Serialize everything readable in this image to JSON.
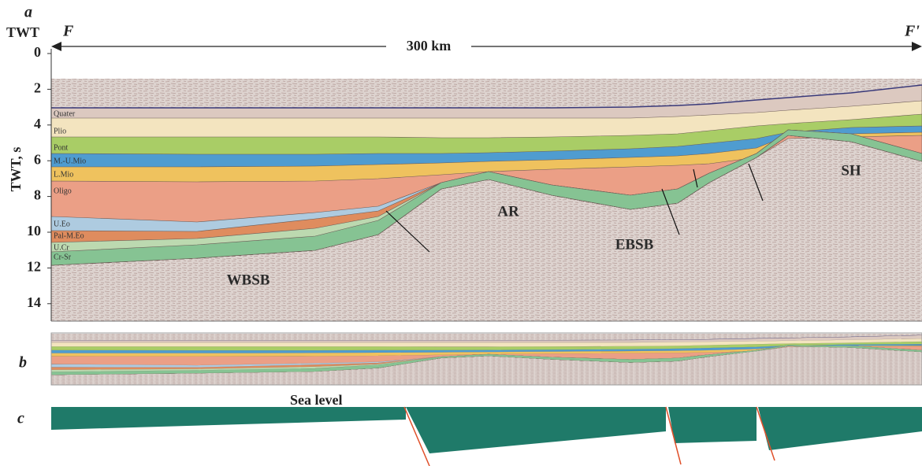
{
  "panel_a": {
    "label": "a",
    "axis_title": "TWT",
    "start_label": "F",
    "end_label": "F'",
    "distance": "300 km",
    "y_axis_label": "TWT, s",
    "yticks": [
      0,
      2,
      4,
      6,
      8,
      10,
      12,
      14
    ],
    "layers": [
      "Quater",
      "Plio",
      "Pont",
      "M.-U.Mio",
      "L.Mio",
      "Oligo",
      "U.Eo",
      "Pal-M.Eo",
      "U.Cr",
      "Cr-Sr"
    ],
    "structures": [
      "WBSB",
      "AR",
      "EBSB",
      "SH"
    ]
  },
  "panel_b": {
    "label": "b"
  },
  "panel_c": {
    "label": "c",
    "sea_level": "Sea level"
  }
}
